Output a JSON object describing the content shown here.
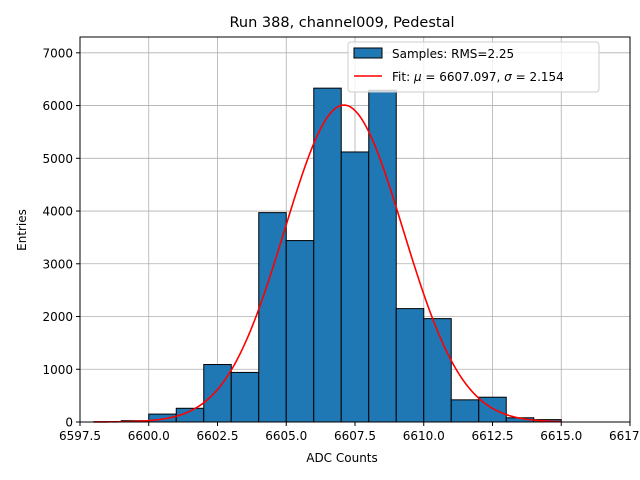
{
  "colors": {
    "bar_fill": "#1f77b4",
    "bar_edge": "#000000",
    "fit_line": "#ff0000",
    "grid": "#b0b0b0"
  },
  "chart_data": {
    "type": "bar",
    "title": "Run 388, channel009, Pedestal",
    "xlabel": "ADC Counts",
    "ylabel": "Entries",
    "xlim": [
      6597.5,
      6617.5
    ],
    "ylim": [
      0,
      7300
    ],
    "grid": true,
    "legend_position": "top-right",
    "x_ticks": [
      6597.5,
      6600.0,
      6602.5,
      6605.0,
      6607.5,
      6610.0,
      6612.5,
      6615.0,
      6617.5
    ],
    "x_tick_labels": [
      "6597.5",
      "6600.0",
      "6602.5",
      "6605.0",
      "6607.5",
      "6610.0",
      "6612.5",
      "6615.0",
      "6617.5"
    ],
    "y_ticks": [
      0,
      1000,
      2000,
      3000,
      4000,
      5000,
      6000,
      7000
    ],
    "y_tick_labels": [
      "0",
      "1000",
      "2000",
      "3000",
      "4000",
      "5000",
      "6000",
      "7000"
    ],
    "histogram": {
      "name": "Samples: RMS=2.25",
      "bin_edges": [
        6598,
        6599,
        6600,
        6601,
        6602,
        6603,
        6604,
        6605,
        6606,
        6607,
        6608,
        6609,
        6610,
        6611,
        6612,
        6613,
        6614,
        6615
      ],
      "counts": [
        5,
        25,
        150,
        260,
        1090,
        940,
        3970,
        3440,
        6330,
        5120,
        6290,
        2150,
        1960,
        420,
        470,
        80,
        45
      ]
    },
    "fit": {
      "name_prefix": "Fit: ",
      "mu_label": "μ",
      "mu_text": " = 6607.097, ",
      "sigma_label": "σ",
      "sigma_text": " = 2.154",
      "type": "gaussian",
      "mu": 6607.097,
      "sigma": 2.154,
      "amplitude": 6010,
      "x_range": [
        6598,
        6615
      ]
    }
  }
}
